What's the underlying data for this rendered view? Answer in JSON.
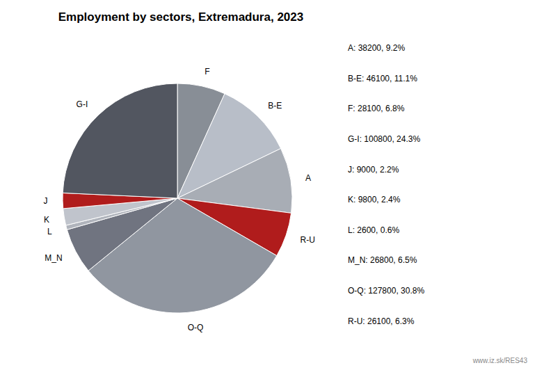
{
  "chart_data": {
    "type": "pie",
    "title": "Employment by sectors, Extremadura, 2023",
    "categories": [
      "F",
      "B-E",
      "A",
      "R-U",
      "O-Q",
      "M_N",
      "L",
      "K",
      "J",
      "G-I"
    ],
    "values": [
      28100,
      46100,
      38200,
      26100,
      127800,
      26800,
      2600,
      9800,
      9000,
      100800
    ],
    "colors": [
      "#888e96",
      "#b8bec8",
      "#a8adb5",
      "#b01c1c",
      "#9096a0",
      "#707480",
      "#b0b4bc",
      "#c0c4cc",
      "#b01c1c",
      "#525660"
    ],
    "annotations": [
      "A: 38200, 9.2%",
      "B-E: 46100, 11.1%",
      "F: 28100, 6.8%",
      "G-I: 100800, 24.3%",
      "J: 9000, 2.2%",
      "K: 9800, 2.4%",
      "L: 2600, 0.6%",
      "M_N: 26800, 6.5%",
      "O-Q: 127800, 30.8%",
      "R-U: 26100, 6.3%"
    ],
    "watermark": "www.iz.sk/RES43"
  }
}
